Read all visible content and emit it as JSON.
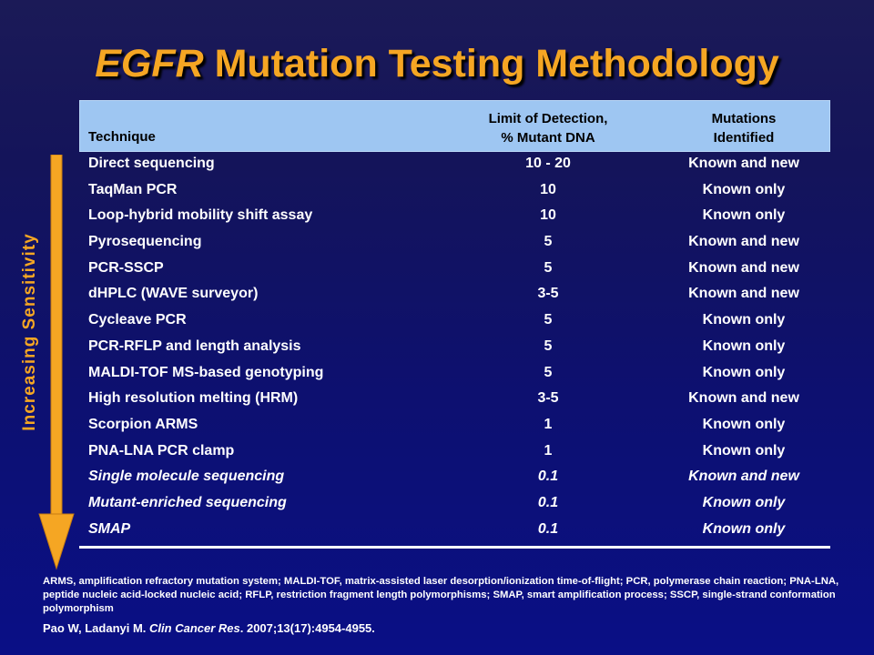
{
  "title": {
    "italic_part": "EGFR",
    "rest": " Mutation Testing Methodology"
  },
  "table": {
    "headers": {
      "technique": "Technique",
      "lod_line1": "Limit of Detection,",
      "lod_line2": "% Mutant DNA",
      "mut_line1": "Mutations",
      "mut_line2": "Identified"
    },
    "rows": [
      {
        "technique": "Direct sequencing",
        "lod": "10 - 20",
        "mutations": "Known and new",
        "italic": false
      },
      {
        "technique": "TaqMan PCR",
        "lod": "10",
        "mutations": "Known only",
        "italic": false
      },
      {
        "technique": "Loop-hybrid mobility shift assay",
        "lod": "10",
        "mutations": "Known only",
        "italic": false
      },
      {
        "technique": "Pyrosequencing",
        "lod": "5",
        "mutations": "Known and new",
        "italic": false
      },
      {
        "technique": "PCR-SSCP",
        "lod": "5",
        "mutations": "Known and new",
        "italic": false
      },
      {
        "technique": "dHPLC (WAVE surveyor)",
        "lod": "3-5",
        "mutations": "Known and new",
        "italic": false
      },
      {
        "technique": "Cycleave PCR",
        "lod": "5",
        "mutations": "Known only",
        "italic": false
      },
      {
        "technique": "PCR-RFLP and length analysis",
        "lod": "5",
        "mutations": "Known only",
        "italic": false
      },
      {
        "technique": "MALDI-TOF MS-based genotyping",
        "lod": "5",
        "mutations": "Known only",
        "italic": false
      },
      {
        "technique": "High resolution melting (HRM)",
        "lod": "3-5",
        "mutations": "Known and new",
        "italic": false
      },
      {
        "technique": "Scorpion ARMS",
        "lod": "1",
        "mutations": "Known only",
        "italic": false
      },
      {
        "technique": "PNA-LNA PCR clamp",
        "lod": "1",
        "mutations": "Known only",
        "italic": false
      },
      {
        "technique": "Single molecule sequencing",
        "lod": "0.1",
        "mutations": "Known and new",
        "italic": true
      },
      {
        "technique": "Mutant-enriched sequencing",
        "lod": "0.1",
        "mutations": "Known only",
        "italic": true
      },
      {
        "technique": "SMAP",
        "lod": "0.1",
        "mutations": "Known only",
        "italic": true
      }
    ]
  },
  "side_label": "Increasing Sensitivity",
  "footnote": "ARMS, amplification refractory mutation system;  MALDI-TOF,  matrix-assisted  laser desorption/ionization time-of-flight;  PCR,  polymerase chain reaction; PNA-LNA,  peptide nucleic acid-locked nucleic acid; RFLP,  restriction  fragment length polymorphisms;   SMAP, smart amplification process;  SSCP, single-strand  conformation polymorphism",
  "citation": {
    "authors": "Pao W, Ladanyi M. ",
    "journal": "Clin Cancer Res",
    "rest": ". 2007;13(17):4954-4955."
  },
  "colors": {
    "title": "#f5a623",
    "header_band": "#9ec6f2",
    "arrow": "#f5a623",
    "background": "#0d1070"
  },
  "icons": {
    "arrow": "down-arrow"
  }
}
